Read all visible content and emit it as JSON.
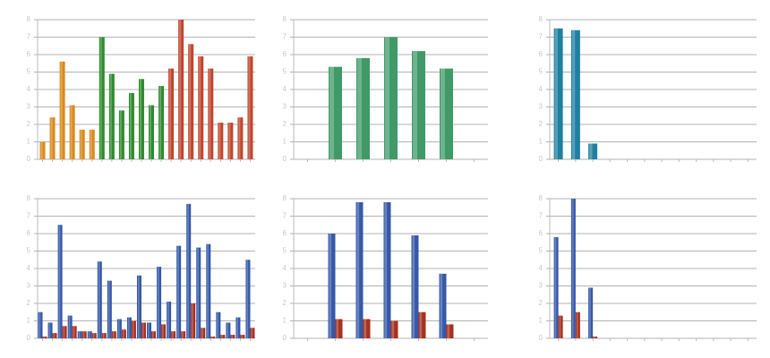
{
  "chart_data": [
    {
      "type": "bar",
      "ylim": [
        0,
        8
      ],
      "yticks": [
        0,
        1,
        2,
        3,
        4,
        5,
        6,
        7,
        8
      ],
      "grid": true,
      "categories": [
        null,
        null,
        null,
        null,
        null,
        null,
        null,
        null,
        null,
        null,
        null,
        null,
        null,
        null,
        null,
        null,
        null,
        null,
        null,
        null,
        null,
        null
      ],
      "values": [
        1.0,
        2.4,
        5.6,
        3.1,
        1.7,
        1.7,
        7.0,
        4.9,
        2.8,
        3.8,
        4.6,
        3.1,
        4.2,
        5.2,
        8.0,
        6.6,
        5.9,
        5.2,
        2.1,
        2.1,
        2.4,
        5.9
      ],
      "colors": [
        "#d98a1e",
        "#d98a1e",
        "#d98a1e",
        "#d98a1e",
        "#d98a1e",
        "#d98a1e",
        "#2e8b2e",
        "#2e8b2e",
        "#2e8b2e",
        "#2e8b2e",
        "#2e8b2e",
        "#2e8b2e",
        "#2e8b2e",
        "#c0462e",
        "#c0462e",
        "#c0462e",
        "#c0462e",
        "#c0462e",
        "#c0462e",
        "#c0462e",
        "#c0462e",
        "#c0462e"
      ]
    },
    {
      "type": "bar",
      "ylim": [
        0,
        8
      ],
      "yticks": [
        0,
        1,
        2,
        3,
        4,
        5,
        6,
        7,
        8
      ],
      "grid": true,
      "categories": [
        null,
        null,
        null,
        null,
        null,
        null,
        null
      ],
      "values": [
        null,
        5.3,
        5.8,
        7.0,
        6.2,
        5.2,
        null
      ],
      "color": "#3f9a68"
    },
    {
      "type": "bar",
      "ylim": [
        0,
        8
      ],
      "yticks": [
        0,
        1,
        2,
        3,
        4,
        5,
        6,
        7,
        8
      ],
      "grid": true,
      "categories": [
        null,
        null,
        null,
        null,
        null,
        null,
        null,
        null,
        null,
        null,
        null,
        null
      ],
      "values": [
        7.5,
        7.4,
        0.9,
        null,
        null,
        null,
        null,
        null,
        null,
        null,
        null,
        null
      ],
      "color": "#1f7fa0"
    },
    {
      "type": "grouped_bar",
      "ylim": [
        0,
        8
      ],
      "yticks": [
        0,
        1,
        2,
        3,
        4,
        5,
        6,
        7,
        8
      ],
      "grid": true,
      "categories": [
        null,
        null,
        null,
        null,
        null,
        null,
        null,
        null,
        null,
        null,
        null,
        null,
        null,
        null,
        null,
        null,
        null,
        null,
        null,
        null,
        null,
        null
      ],
      "series": [
        {
          "color": "#3558a8",
          "values": [
            1.5,
            0.9,
            6.5,
            1.3,
            0.4,
            0.4,
            4.4,
            3.3,
            1.1,
            1.2,
            3.6,
            0.9,
            4.1,
            2.1,
            5.3,
            7.7,
            5.2,
            5.4,
            1.5,
            0.9,
            1.2,
            4.5
          ]
        },
        {
          "color": "#a8301c",
          "values": [
            0.1,
            0.3,
            0.7,
            0.7,
            0.4,
            0.3,
            0.3,
            0.4,
            0.5,
            1.0,
            0.9,
            0.4,
            0.8,
            0.4,
            0.4,
            2.0,
            0.6,
            0.1,
            0.2,
            0.2,
            0.2,
            0.6
          ]
        }
      ]
    },
    {
      "type": "grouped_bar",
      "ylim": [
        0,
        8
      ],
      "yticks": [
        0,
        1,
        2,
        3,
        4,
        5,
        6,
        7,
        8
      ],
      "grid": true,
      "categories": [
        null,
        null,
        null,
        null,
        null,
        null,
        null
      ],
      "series": [
        {
          "color": "#3558a8",
          "values": [
            null,
            6.0,
            7.8,
            7.8,
            5.9,
            3.7,
            null
          ]
        },
        {
          "color": "#a8301c",
          "values": [
            null,
            1.1,
            1.1,
            1.0,
            1.5,
            0.8,
            null
          ]
        }
      ]
    },
    {
      "type": "grouped_bar",
      "ylim": [
        0,
        8
      ],
      "yticks": [
        0,
        1,
        2,
        3,
        4,
        5,
        6,
        7,
        8
      ],
      "grid": true,
      "categories": [
        null,
        null,
        null,
        null,
        null,
        null,
        null,
        null,
        null,
        null,
        null,
        null
      ],
      "series": [
        {
          "color": "#3558a8",
          "values": [
            5.8,
            8.0,
            2.9,
            null,
            null,
            null,
            null,
            null,
            null,
            null,
            null,
            null
          ]
        },
        {
          "color": "#a8301c",
          "values": [
            1.3,
            1.5,
            0.1,
            null,
            null,
            null,
            null,
            null,
            null,
            null,
            null,
            null
          ]
        }
      ]
    }
  ]
}
